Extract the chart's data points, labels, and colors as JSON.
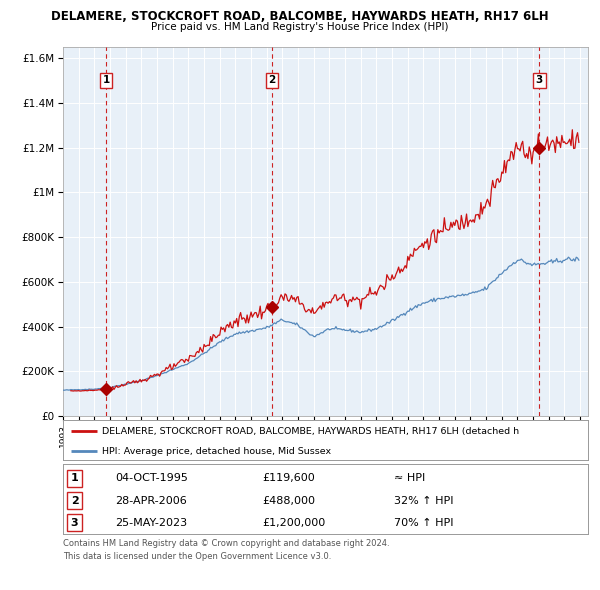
{
  "title": "DELAMERE, STOCKCROFT ROAD, BALCOMBE, HAYWARDS HEATH, RH17 6LH",
  "subtitle": "Price paid vs. HM Land Registry's House Price Index (HPI)",
  "legend_line1": "DELAMERE, STOCKCROFT ROAD, BALCOMBE, HAYWARDS HEATH, RH17 6LH (detached h",
  "legend_line2": "HPI: Average price, detached house, Mid Sussex",
  "footer1": "Contains HM Land Registry data © Crown copyright and database right 2024.",
  "footer2": "This data is licensed under the Open Government Licence v3.0.",
  "transactions": [
    {
      "num": 1,
      "date": "04-OCT-1995",
      "price": 119600,
      "relation": "≈ HPI",
      "year": 1995.75
    },
    {
      "num": 2,
      "date": "28-APR-2006",
      "price": 488000,
      "relation": "32% ↑ HPI",
      "year": 2006.32
    },
    {
      "num": 3,
      "date": "25-MAY-2023",
      "price": 1200000,
      "relation": "70% ↑ HPI",
      "year": 2023.4
    }
  ],
  "ylim": [
    0,
    1650000
  ],
  "xlim_start": 1993.0,
  "xlim_end": 2026.5,
  "background_color": "#dce8f5",
  "hatch_color": "#c5d5e8",
  "grid_color": "#ffffff",
  "hpi_line_color": "#5588bb",
  "price_line_color": "#cc1111",
  "transaction_marker_color": "#aa0000",
  "transaction_box_color": "#cc2222",
  "dashed_line_color": "#cc2222"
}
